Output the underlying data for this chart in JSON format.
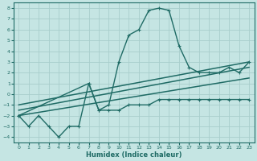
{
  "xlabel": "Humidex (Indice chaleur)",
  "background_color": "#c5e5e3",
  "grid_color": "#a8cecc",
  "line_color": "#1f6b65",
  "xlim": [
    -0.5,
    23.5
  ],
  "ylim": [
    -4.5,
    8.5
  ],
  "xticks": [
    0,
    1,
    2,
    3,
    4,
    5,
    6,
    7,
    8,
    9,
    10,
    11,
    12,
    13,
    14,
    15,
    16,
    17,
    18,
    19,
    20,
    21,
    22,
    23
  ],
  "yticks": [
    -4,
    -3,
    -2,
    -1,
    0,
    1,
    2,
    3,
    4,
    5,
    6,
    7,
    8
  ],
  "series": [
    {
      "x": [
        0,
        1,
        2,
        3,
        4,
        5,
        6,
        7,
        8,
        9,
        10,
        11,
        12,
        13,
        14,
        15,
        16,
        17,
        18,
        19,
        20,
        21,
        22,
        23
      ],
      "y": [
        -2,
        -3,
        -2,
        -3,
        -4,
        -3,
        -3,
        1,
        -1.5,
        -1.5,
        -1.5,
        -1,
        -1,
        -1,
        -0.5,
        -0.5,
        -0.5,
        -0.5,
        -0.5,
        -0.5,
        -0.5,
        -0.5,
        -0.5,
        -0.5
      ],
      "marker": true
    },
    {
      "x": [
        0,
        23
      ],
      "y": [
        -2,
        1.5
      ],
      "marker": false
    },
    {
      "x": [
        0,
        23
      ],
      "y": [
        -1.5,
        2.5
      ],
      "marker": false
    },
    {
      "x": [
        0,
        23
      ],
      "y": [
        -1,
        3
      ],
      "marker": false
    },
    {
      "x": [
        0,
        7,
        8,
        9,
        10,
        11,
        12,
        13,
        14,
        15,
        16,
        17,
        18,
        19,
        20,
        21,
        22,
        23
      ],
      "y": [
        -2,
        1,
        -1.5,
        -1,
        3,
        5.5,
        6,
        7.8,
        8,
        7.8,
        4.5,
        2.5,
        2,
        2,
        2,
        2.5,
        2,
        3
      ],
      "marker": true
    }
  ]
}
